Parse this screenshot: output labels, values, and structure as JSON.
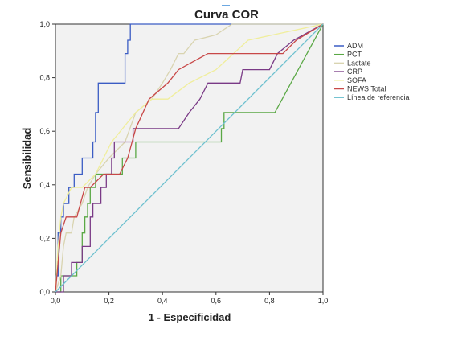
{
  "chart_data": {
    "type": "line",
    "title": "Curva COR",
    "xlabel": "1 - Especificidad",
    "ylabel": "Sensibilidad",
    "xlim": [
      0,
      1
    ],
    "ylim": [
      0,
      1
    ],
    "x_ticks": [
      "0,0",
      "0,2",
      "0,4",
      "0,6",
      "0,8",
      "1,0"
    ],
    "y_ticks": [
      "0,0",
      "0,2",
      "0,4",
      "0,6",
      "0,8",
      "1,0"
    ],
    "grid": false,
    "background": "#f2f2f2",
    "legend_position": "right",
    "series": [
      {
        "name": "ADM",
        "color": "#3b5cc4",
        "points": [
          [
            0,
            0
          ],
          [
            0,
            0.06
          ],
          [
            0.01,
            0.06
          ],
          [
            0.01,
            0.22
          ],
          [
            0.02,
            0.22
          ],
          [
            0.02,
            0.28
          ],
          [
            0.03,
            0.28
          ],
          [
            0.03,
            0.33
          ],
          [
            0.05,
            0.33
          ],
          [
            0.05,
            0.39
          ],
          [
            0.07,
            0.39
          ],
          [
            0.07,
            0.44
          ],
          [
            0.1,
            0.44
          ],
          [
            0.1,
            0.5
          ],
          [
            0.14,
            0.5
          ],
          [
            0.14,
            0.56
          ],
          [
            0.15,
            0.56
          ],
          [
            0.15,
            0.67
          ],
          [
            0.16,
            0.67
          ],
          [
            0.16,
            0.78
          ],
          [
            0.26,
            0.78
          ],
          [
            0.26,
            0.89
          ],
          [
            0.27,
            0.89
          ],
          [
            0.27,
            0.94
          ],
          [
            0.28,
            0.94
          ],
          [
            0.28,
            1.0
          ],
          [
            0.56,
            1.0
          ],
          [
            0.58,
            1.0
          ],
          [
            1,
            1
          ]
        ]
      },
      {
        "name": "PCT",
        "color": "#5aa845",
        "points": [
          [
            0,
            0
          ],
          [
            0.02,
            0
          ],
          [
            0.02,
            0.06
          ],
          [
            0.08,
            0.06
          ],
          [
            0.08,
            0.11
          ],
          [
            0.1,
            0.11
          ],
          [
            0.1,
            0.22
          ],
          [
            0.11,
            0.22
          ],
          [
            0.11,
            0.28
          ],
          [
            0.12,
            0.28
          ],
          [
            0.12,
            0.33
          ],
          [
            0.13,
            0.33
          ],
          [
            0.13,
            0.39
          ],
          [
            0.15,
            0.39
          ],
          [
            0.15,
            0.44
          ],
          [
            0.25,
            0.44
          ],
          [
            0.25,
            0.5
          ],
          [
            0.3,
            0.5
          ],
          [
            0.3,
            0.56
          ],
          [
            0.62,
            0.56
          ],
          [
            0.62,
            0.61
          ],
          [
            0.63,
            0.61
          ],
          [
            0.63,
            0.67
          ],
          [
            0.82,
            0.67
          ],
          [
            1,
            1
          ]
        ]
      },
      {
        "name": "Lactate",
        "color": "#d9d4b0",
        "points": [
          [
            0,
            0
          ],
          [
            0.02,
            0.06
          ],
          [
            0.03,
            0.17
          ],
          [
            0.04,
            0.22
          ],
          [
            0.06,
            0.22
          ],
          [
            0.07,
            0.28
          ],
          [
            0.1,
            0.33
          ],
          [
            0.12,
            0.39
          ],
          [
            0.15,
            0.44
          ],
          [
            0.2,
            0.5
          ],
          [
            0.26,
            0.56
          ],
          [
            0.3,
            0.67
          ],
          [
            0.36,
            0.72
          ],
          [
            0.4,
            0.78
          ],
          [
            0.43,
            0.83
          ],
          [
            0.46,
            0.89
          ],
          [
            0.48,
            0.89
          ],
          [
            0.52,
            0.94
          ],
          [
            0.6,
            0.96
          ],
          [
            0.66,
            1.0
          ],
          [
            1,
            1
          ]
        ]
      },
      {
        "name": "CRP",
        "color": "#7a3a86",
        "points": [
          [
            0,
            0
          ],
          [
            0.03,
            0
          ],
          [
            0.03,
            0.06
          ],
          [
            0.06,
            0.06
          ],
          [
            0.06,
            0.11
          ],
          [
            0.1,
            0.11
          ],
          [
            0.1,
            0.17
          ],
          [
            0.13,
            0.17
          ],
          [
            0.13,
            0.28
          ],
          [
            0.14,
            0.28
          ],
          [
            0.14,
            0.33
          ],
          [
            0.17,
            0.33
          ],
          [
            0.17,
            0.39
          ],
          [
            0.19,
            0.39
          ],
          [
            0.19,
            0.44
          ],
          [
            0.21,
            0.44
          ],
          [
            0.21,
            0.5
          ],
          [
            0.22,
            0.5
          ],
          [
            0.22,
            0.56
          ],
          [
            0.29,
            0.56
          ],
          [
            0.29,
            0.61
          ],
          [
            0.46,
            0.61
          ],
          [
            0.5,
            0.67
          ],
          [
            0.54,
            0.72
          ],
          [
            0.57,
            0.78
          ],
          [
            0.69,
            0.78
          ],
          [
            0.7,
            0.83
          ],
          [
            0.74,
            0.83
          ],
          [
            0.8,
            0.83
          ],
          [
            0.83,
            0.89
          ],
          [
            0.89,
            0.94
          ],
          [
            1,
            1
          ]
        ]
      },
      {
        "name": "SOFA",
        "color": "#f0ee9c",
        "points": [
          [
            0,
            0
          ],
          [
            0.01,
            0.17
          ],
          [
            0.02,
            0.28
          ],
          [
            0.03,
            0.33
          ],
          [
            0.06,
            0.39
          ],
          [
            0.1,
            0.39
          ],
          [
            0.15,
            0.44
          ],
          [
            0.21,
            0.56
          ],
          [
            0.3,
            0.67
          ],
          [
            0.36,
            0.72
          ],
          [
            0.42,
            0.72
          ],
          [
            0.5,
            0.78
          ],
          [
            0.6,
            0.83
          ],
          [
            0.72,
            0.94
          ],
          [
            0.86,
            0.97
          ],
          [
            1,
            1
          ]
        ]
      },
      {
        "name": "NEWS Total",
        "color": "#c84848",
        "points": [
          [
            0,
            0
          ],
          [
            0.01,
            0.11
          ],
          [
            0.02,
            0.22
          ],
          [
            0.04,
            0.28
          ],
          [
            0.08,
            0.28
          ],
          [
            0.11,
            0.39
          ],
          [
            0.13,
            0.39
          ],
          [
            0.18,
            0.44
          ],
          [
            0.24,
            0.44
          ],
          [
            0.27,
            0.5
          ],
          [
            0.3,
            0.61
          ],
          [
            0.35,
            0.72
          ],
          [
            0.42,
            0.78
          ],
          [
            0.46,
            0.83
          ],
          [
            0.57,
            0.89
          ],
          [
            0.68,
            0.89
          ],
          [
            0.85,
            0.89
          ],
          [
            0.9,
            0.94
          ],
          [
            1,
            1
          ]
        ]
      },
      {
        "name": "Línea de referencia",
        "color": "#6cc0cf",
        "points": [
          [
            0,
            0
          ],
          [
            1,
            1
          ]
        ]
      }
    ]
  }
}
